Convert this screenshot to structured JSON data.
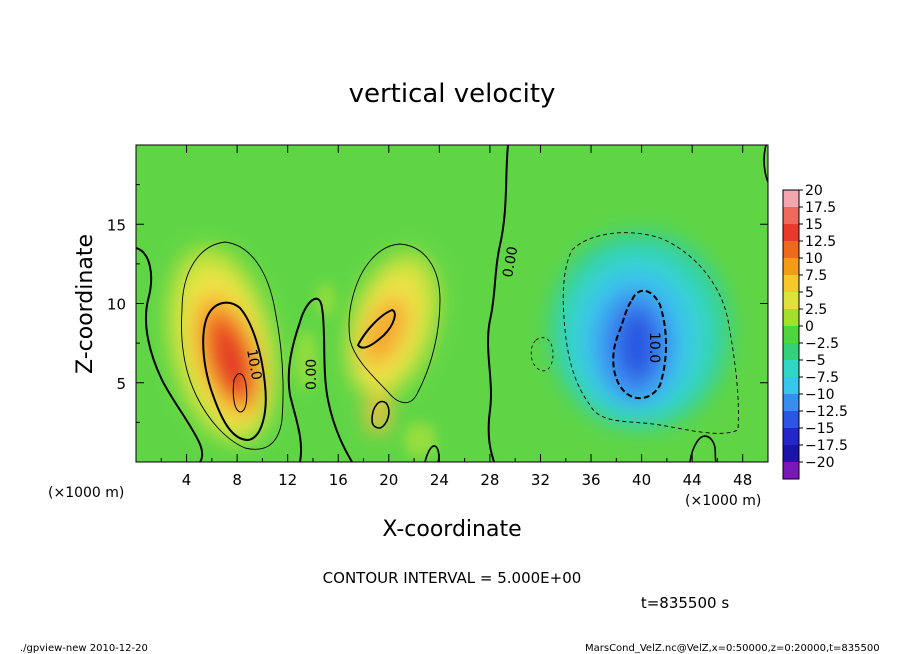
{
  "chart_data": {
    "type": "heatmap",
    "title": "vertical velocity",
    "xlabel": "X-coordinate",
    "ylabel": "Z-coordinate",
    "x_unit": "(×1000 m)",
    "z_unit": "(×1000 m)",
    "xlim": [
      0,
      50
    ],
    "ylim": [
      0,
      20
    ],
    "x_ticks": [
      4,
      8,
      12,
      16,
      20,
      24,
      28,
      32,
      36,
      40,
      44,
      48
    ],
    "y_ticks": [
      5,
      10,
      15
    ],
    "colorbar": {
      "labels": [
        "20",
        "17.5",
        "15",
        "12.5",
        "10",
        "7.5",
        "5",
        "2.5",
        "0",
        "−2.5",
        "−5",
        "−7.5",
        "−10",
        "−12.5",
        "−15",
        "−17.5",
        "−20"
      ],
      "colors": [
        "#f4a6b0",
        "#ef6a5c",
        "#e8392a",
        "#ee6a1a",
        "#f39c14",
        "#f6c92a",
        "#dde33a",
        "#a4df2e",
        "#4fd63a",
        "#33d27a",
        "#2fd8c6",
        "#36c6ec",
        "#3a8df0",
        "#2b55e6",
        "#2326c8",
        "#1a14a8",
        "#7a18b8"
      ]
    },
    "features": [
      {
        "sign": "positive",
        "x": 7.5,
        "z": 7.5,
        "peak": 15
      },
      {
        "sign": "positive",
        "x": 19.5,
        "z": 8,
        "peak": 10
      },
      {
        "sign": "negative",
        "x": 40,
        "z": 8,
        "peak": -12.5
      }
    ],
    "contour_labels": [
      "10.0",
      "0.00",
      "0.00",
      "10.0"
    ],
    "contour_interval": "CONTOUR INTERVAL = 5.000E+00",
    "time": "t=835500 s",
    "footer_left": "./gpview-new  2010-12-20",
    "footer_right": "MarsCond_VelZ.nc@VelZ,x=0:50000,z=0:20000,t=835500"
  }
}
